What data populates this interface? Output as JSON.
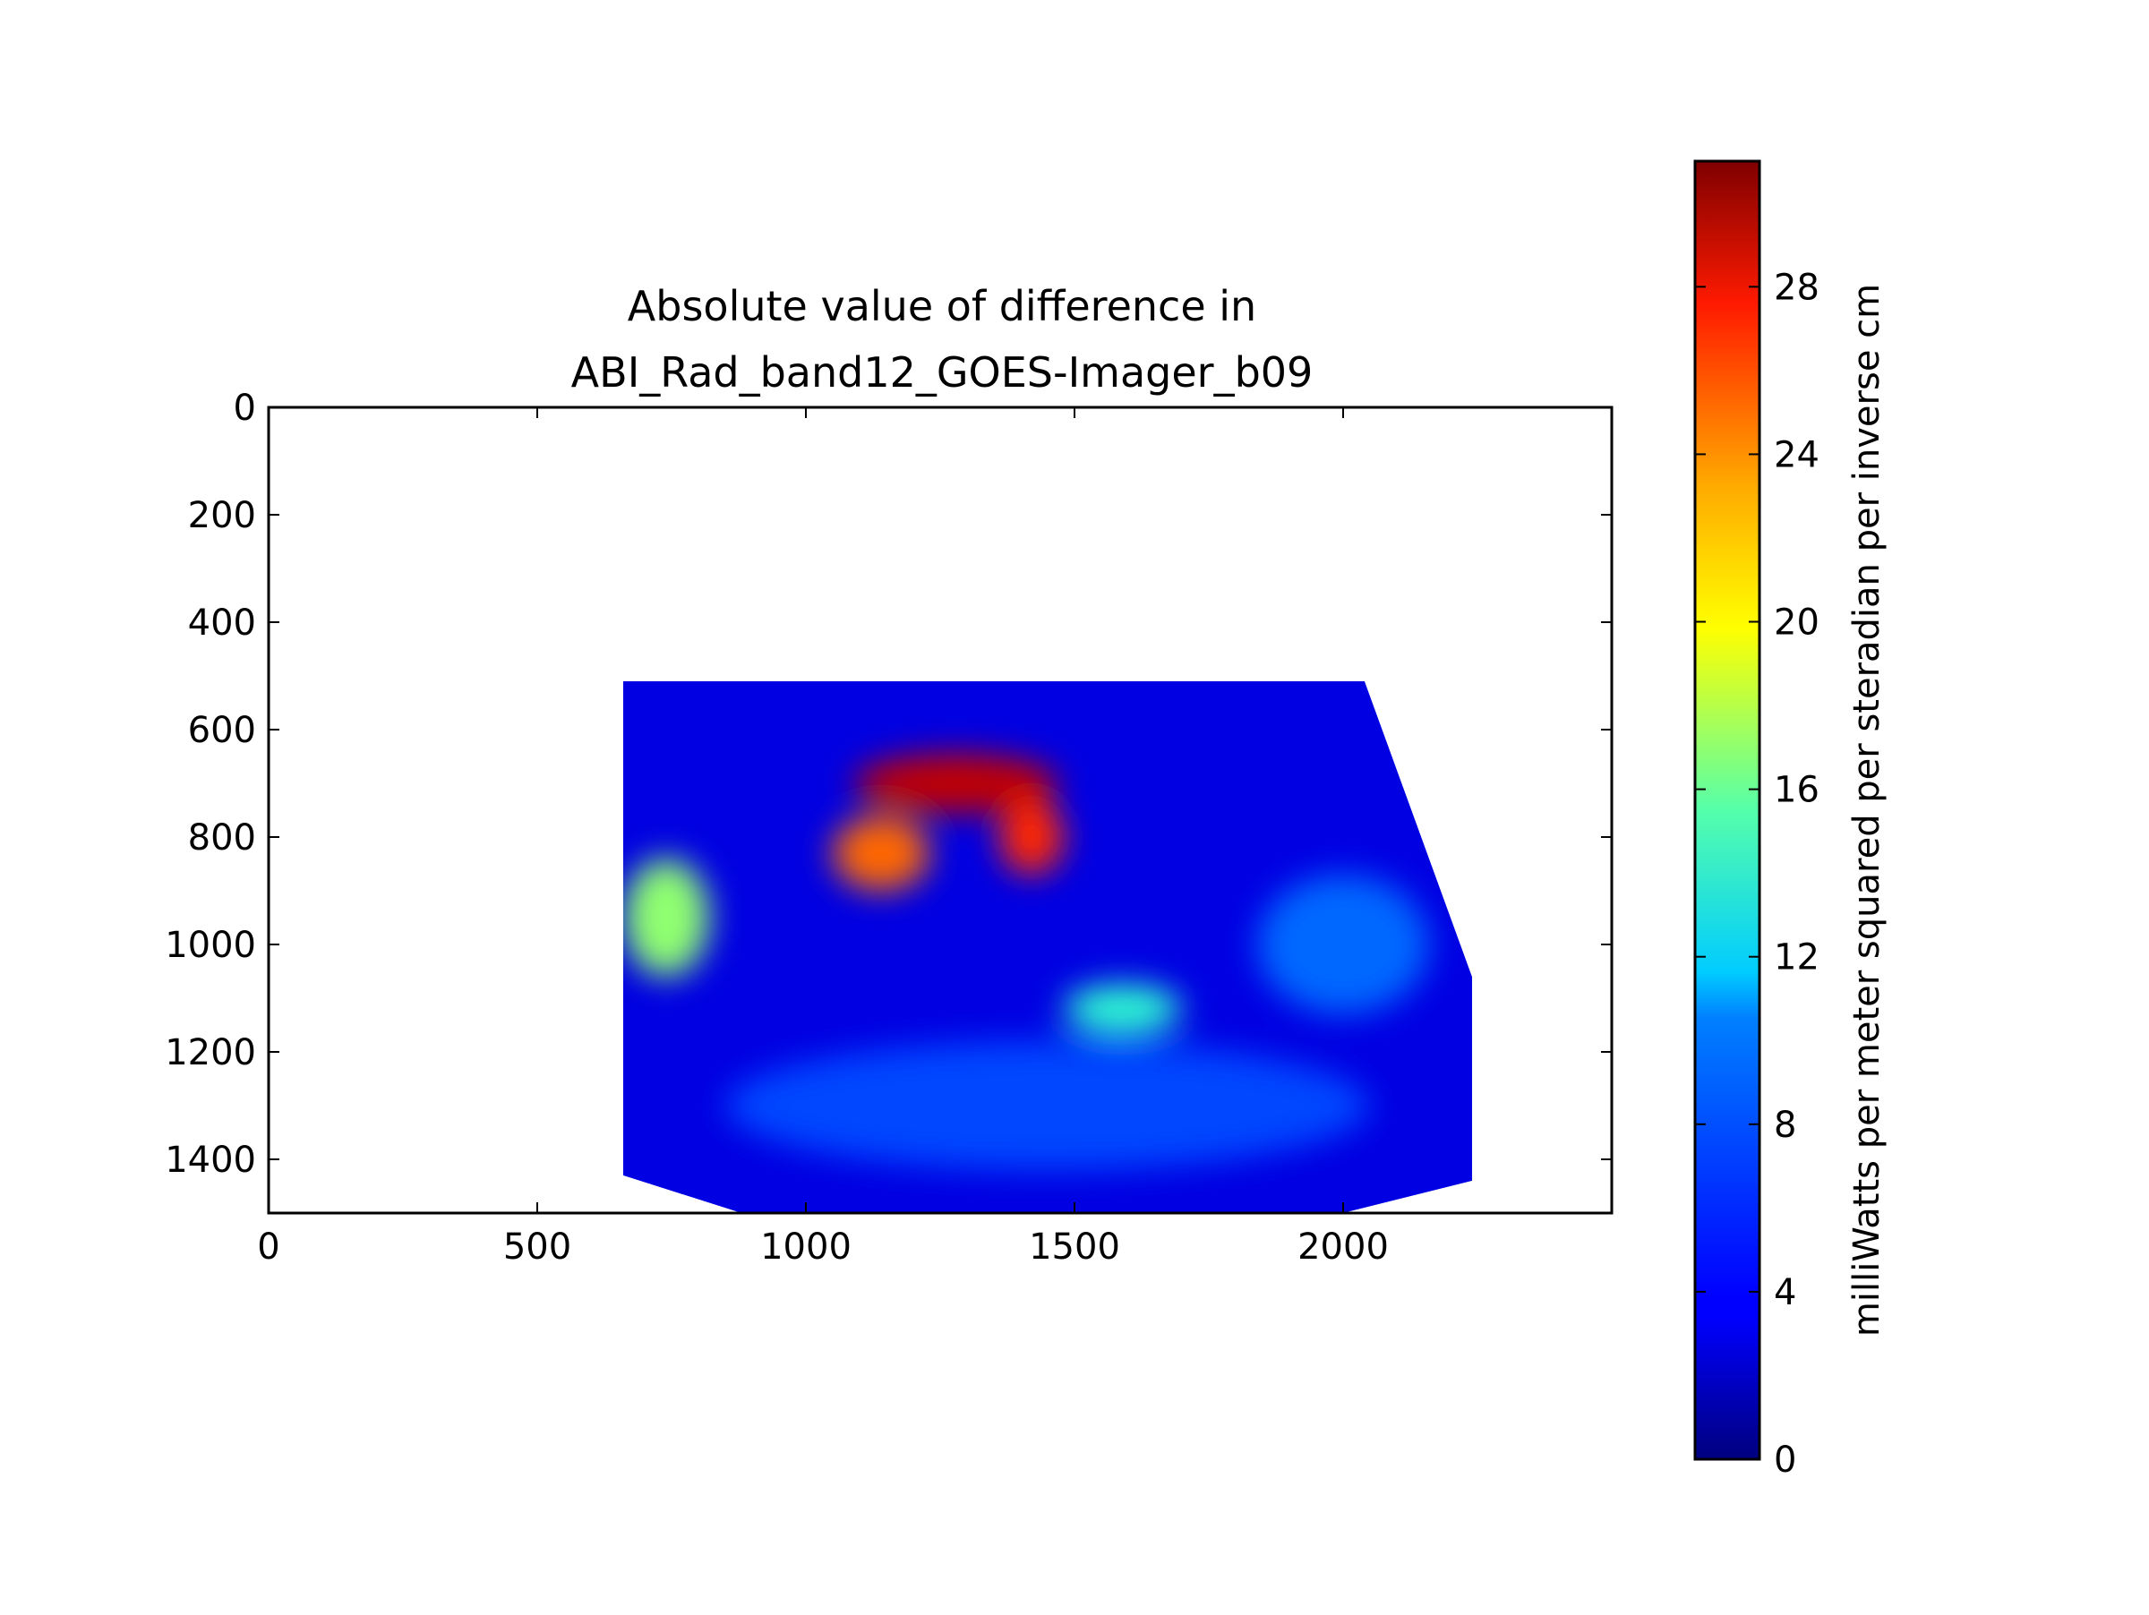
{
  "chart_data": {
    "type": "heatmap",
    "title_lines": [
      "Absolute value of difference in",
      "ABI_Rad_band12_GOES-Imager_b09"
    ],
    "xlim": [
      0,
      2500
    ],
    "ylim": [
      1500,
      0
    ],
    "x_ticks": [
      {
        "value": 0,
        "label": "0"
      },
      {
        "value": 500,
        "label": "500"
      },
      {
        "value": 1000,
        "label": "1000"
      },
      {
        "value": 1500,
        "label": "1500"
      },
      {
        "value": 2000,
        "label": "2000"
      }
    ],
    "y_ticks": [
      {
        "value": 0,
        "label": "0"
      },
      {
        "value": 200,
        "label": "200"
      },
      {
        "value": 400,
        "label": "400"
      },
      {
        "value": 600,
        "label": "600"
      },
      {
        "value": 800,
        "label": "800"
      },
      {
        "value": 1000,
        "label": "1000"
      },
      {
        "value": 1200,
        "label": "1200"
      },
      {
        "value": 1400,
        "label": "1400"
      }
    ],
    "colormap": "jet",
    "colorbar": {
      "range": [
        0,
        31
      ],
      "label": "milliWatts per meter squared per steradian per inverse cm",
      "ticks": [
        {
          "value": 0,
          "label": "0"
        },
        {
          "value": 4,
          "label": "4"
        },
        {
          "value": 8,
          "label": "8"
        },
        {
          "value": 12,
          "label": "12"
        },
        {
          "value": 16,
          "label": "16"
        },
        {
          "value": 20,
          "label": "20"
        },
        {
          "value": 24,
          "label": "24"
        },
        {
          "value": 28,
          "label": "28"
        }
      ]
    },
    "data_region": {
      "outline": [
        [
          660,
          510
        ],
        [
          2040,
          510
        ],
        [
          2240,
          1060
        ],
        [
          2240,
          1440
        ],
        [
          2000,
          1500
        ],
        [
          880,
          1500
        ],
        [
          660,
          1430
        ]
      ],
      "background_value": 3,
      "features": [
        {
          "cx": 1280,
          "cy": 700,
          "rx": 190,
          "ry": 55,
          "value": 29
        },
        {
          "cx": 1140,
          "cy": 830,
          "rx": 90,
          "ry": 70,
          "value": 24
        },
        {
          "cx": 1420,
          "cy": 800,
          "rx": 60,
          "ry": 70,
          "value": 26
        },
        {
          "cx": 1590,
          "cy": 1120,
          "rx": 110,
          "ry": 45,
          "value": 13
        },
        {
          "cx": 740,
          "cy": 950,
          "rx": 80,
          "ry": 110,
          "value": 16
        },
        {
          "cx": 2000,
          "cy": 1000,
          "rx": 160,
          "ry": 130,
          "value": 7
        },
        {
          "cx": 1450,
          "cy": 1300,
          "rx": 600,
          "ry": 120,
          "value": 6
        }
      ]
    }
  }
}
